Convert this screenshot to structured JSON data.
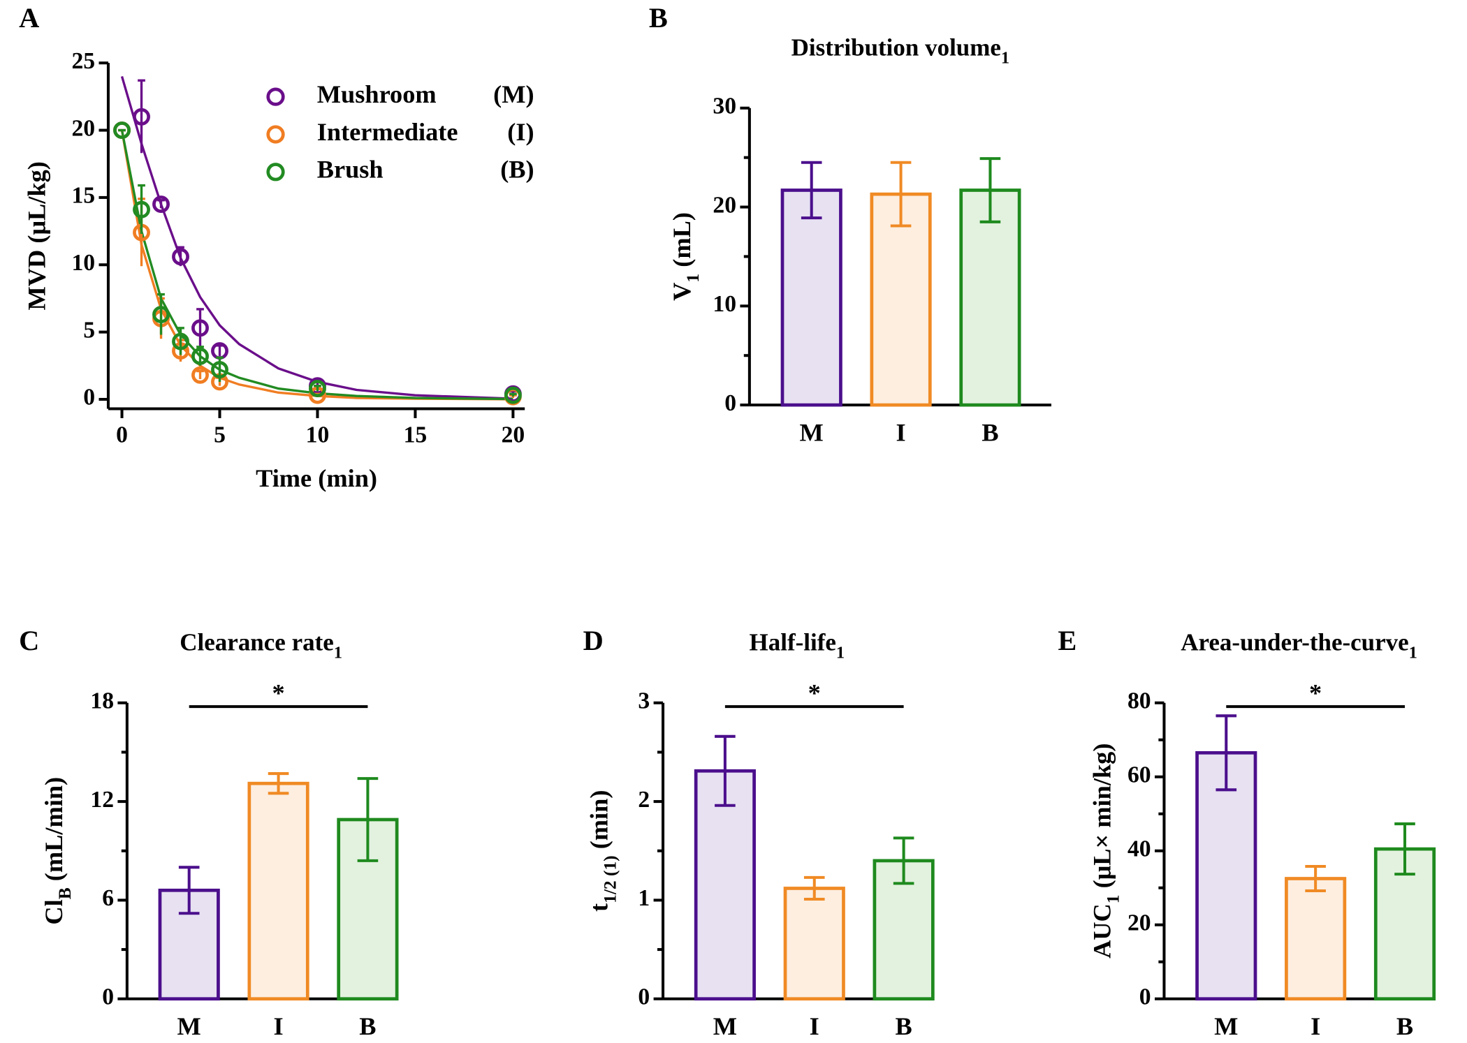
{
  "chart_data": [
    {
      "type": "scatter",
      "panel": "A",
      "xlabel": [
        {
          "text": "Time (min)"
        }
      ],
      "ylabel": [
        {
          "text": "MVD (μL/kg)"
        }
      ],
      "x": [
        0,
        1,
        2,
        3,
        4,
        5,
        10,
        20
      ],
      "fit_x": [
        0,
        1,
        2,
        3,
        4,
        5,
        6,
        8,
        10,
        12,
        15,
        20
      ],
      "series": [
        {
          "name": "Mushroom",
          "abbr": "(M)",
          "color": "#6a0e8a",
          "values": [
            20,
            21,
            14.5,
            10.6,
            5.3,
            3.6,
            1.0,
            0.4
          ],
          "errors": [
            0,
            2.7,
            0.3,
            0.7,
            1.4,
            0.4,
            0.3,
            0.2
          ],
          "fit": [
            24,
            19,
            14.5,
            10.5,
            7.6,
            5.5,
            4.1,
            2.3,
            1.3,
            0.7,
            0.3,
            0.05
          ]
        },
        {
          "name": "Intermediate",
          "abbr": "(I)",
          "color": "#f07d22",
          "values": [
            20,
            12.4,
            6.0,
            3.6,
            1.8,
            1.3,
            0.3,
            0.2
          ],
          "errors": [
            0,
            2.5,
            1.5,
            0.8,
            0.3,
            0.3,
            0.1,
            0.1
          ],
          "fit": [
            20,
            11.5,
            6.7,
            4.0,
            2.5,
            1.6,
            1.1,
            0.5,
            0.25,
            0.1,
            0.05,
            0
          ]
        },
        {
          "name": "Brush",
          "abbr": "(B)",
          "color": "#228b22",
          "values": [
            20,
            14.1,
            6.3,
            4.3,
            3.2,
            2.2,
            0.8,
            0.3
          ],
          "errors": [
            0,
            1.8,
            1.5,
            1.0,
            0.7,
            0.9,
            0.2,
            0.1
          ],
          "fit": [
            20,
            12.5,
            7.5,
            4.8,
            3.2,
            2.2,
            1.6,
            0.8,
            0.45,
            0.25,
            0.1,
            0.02
          ]
        }
      ],
      "xlim": [
        -0.7,
        20.6
      ],
      "xticks": [
        0,
        5,
        10,
        15,
        20
      ],
      "ylim": [
        -0.7,
        25
      ],
      "yticks": [
        0,
        5,
        10,
        15,
        20,
        25
      ]
    },
    {
      "type": "bar",
      "panel": "B",
      "title": [
        {
          "text": "Distribution volume"
        },
        {
          "text": "1",
          "sub": true
        }
      ],
      "ylabel": [
        {
          "text": "V"
        },
        {
          "text": "1",
          "sub": true
        },
        {
          "text": " (mL)"
        }
      ],
      "categories": [
        "M",
        "I",
        "B"
      ],
      "values": [
        21.7,
        21.3,
        21.7
      ],
      "errors": [
        2.8,
        3.2,
        3.2
      ],
      "colors": [
        "#4b0f8c",
        "#f08a24",
        "#1e8a1e"
      ],
      "fill_colors": [
        "#e7e1f2",
        "#fdeee0",
        "#e3f2df"
      ],
      "ylim": [
        0,
        30
      ],
      "yticks": [
        0,
        10,
        20,
        30
      ],
      "yminor": [
        5,
        15,
        25
      ]
    },
    {
      "type": "bar",
      "panel": "C",
      "title": [
        {
          "text": "Clearance rate"
        },
        {
          "text": "1",
          "sub": true
        }
      ],
      "ylabel": [
        {
          "text": "Cl"
        },
        {
          "text": "B",
          "sub": true
        },
        {
          "text": " (mL/min)"
        }
      ],
      "categories": [
        "M",
        "I",
        "B"
      ],
      "values": [
        6.6,
        13.1,
        10.9
      ],
      "errors": [
        1.4,
        0.6,
        2.5
      ],
      "colors": [
        "#4b0f8c",
        "#f08a24",
        "#1e8a1e"
      ],
      "fill_colors": [
        "#e7e1f2",
        "#fdeee0",
        "#e3f2df"
      ],
      "ylim": [
        0,
        18
      ],
      "yticks": [
        0,
        6,
        12,
        18
      ],
      "yminor": [
        3,
        9,
        15
      ],
      "significance": {
        "label": "*",
        "categories": [
          "M",
          "B"
        ]
      }
    },
    {
      "type": "bar",
      "panel": "D",
      "title": [
        {
          "text": "Half-life"
        },
        {
          "text": "1",
          "sub": true
        }
      ],
      "ylabel": [
        {
          "text": "t"
        },
        {
          "text": "1/2 (1)",
          "sub": true
        },
        {
          "text": " (min)"
        }
      ],
      "categories": [
        "M",
        "I",
        "B"
      ],
      "values": [
        2.31,
        1.12,
        1.4
      ],
      "errors": [
        0.35,
        0.11,
        0.23
      ],
      "colors": [
        "#4b0f8c",
        "#f08a24",
        "#1e8a1e"
      ],
      "fill_colors": [
        "#e7e1f2",
        "#fdeee0",
        "#e3f2df"
      ],
      "ylim": [
        0,
        3
      ],
      "yticks": [
        0,
        1,
        2,
        3
      ],
      "yminor": [
        0.5,
        1.5,
        2.5
      ],
      "significance": {
        "label": "*",
        "categories": [
          "M",
          "B"
        ]
      }
    },
    {
      "type": "bar",
      "panel": "E",
      "title": [
        {
          "text": "Area-under-the-curve"
        },
        {
          "text": "1",
          "sub": true
        }
      ],
      "ylabel": [
        {
          "text": "AUC"
        },
        {
          "text": "1",
          "sub": true
        },
        {
          "text": " (μL× min/kg)"
        }
      ],
      "categories": [
        "M",
        "I",
        "B"
      ],
      "values": [
        66.5,
        32.5,
        40.5
      ],
      "errors": [
        10,
        3.3,
        6.8
      ],
      "colors": [
        "#4b0f8c",
        "#f08a24",
        "#1e8a1e"
      ],
      "fill_colors": [
        "#e7e1f2",
        "#fdeee0",
        "#e3f2df"
      ],
      "ylim": [
        0,
        80
      ],
      "yticks": [
        0,
        20,
        40,
        60,
        80
      ],
      "yminor": [
        10,
        30,
        50,
        70
      ],
      "significance": {
        "label": "*",
        "categories": [
          "M",
          "B"
        ]
      }
    }
  ]
}
